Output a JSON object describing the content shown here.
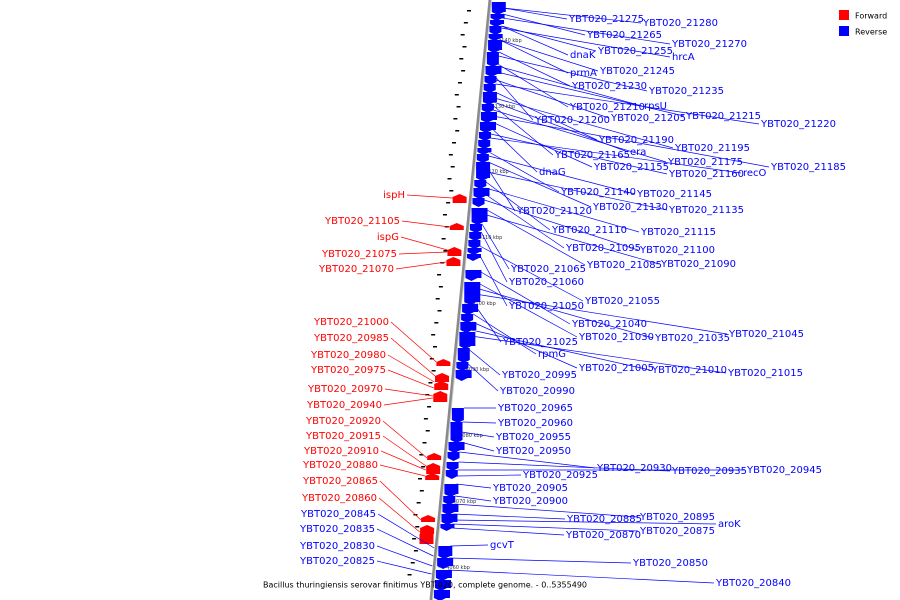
{
  "legend": {
    "items": [
      {
        "label": "Forward",
        "color": "#ff0000"
      },
      {
        "label": "Reverse",
        "color": "#0000ff"
      }
    ]
  },
  "caption": "Bacillus thuringiensis serovar finitimus YBT-020, complete genome. - 0..5355490",
  "colors": {
    "forward": "#ff0000",
    "reverse": "#0000ff",
    "backbone": "#999999"
  },
  "ticks": [
    "4140 kbp",
    "4130 kbp",
    "4120 kbp",
    "4110 kbp",
    "4100 kbp",
    "4090 kbp",
    "4080 kbp",
    "4070 kbp",
    "4060 kbp"
  ],
  "forward_labels": [
    "ispH",
    "YBT020_21105",
    "ispG",
    "YBT020_21075",
    "YBT020_21070",
    "YBT020_21000",
    "YBT020_20985",
    "YBT020_20980",
    "YBT020_20975",
    "YBT020_20970",
    "YBT020_20940",
    "YBT020_20920",
    "YBT020_20915",
    "YBT020_20910",
    "YBT020_20880",
    "YBT020_20865",
    "YBT020_20860"
  ],
  "reverse_left_labels": [
    "YBT020_20845",
    "YBT020_20835",
    "YBT020_20830",
    "YBT020_20825"
  ],
  "reverse_labels": [
    "YBT020_21275",
    "YBT020_21280",
    "YBT020_21265",
    "YBT020_21270",
    "dnaK",
    "YBT020_21255",
    "hrcA",
    "prmA",
    "YBT020_21245",
    "YBT020_21230",
    "YBT020_21235",
    "YBT020_21210",
    "rpsU",
    "YBT020_21215",
    "YBT020_21200",
    "YBT020_21205",
    "YBT020_21220",
    "YBT020_21190",
    "YBT020_21195",
    "era",
    "YBT020_21165",
    "YBT020_21175",
    "YBT020_21185",
    "YBT020_21155",
    "dnaG",
    "YBT020_21160",
    "recO",
    "YBT020_21140",
    "YBT020_21145",
    "YBT020_21130",
    "YBT020_21120",
    "YBT020_21135",
    "YBT020_21110",
    "YBT020_21115",
    "YBT020_21095",
    "YBT020_21100",
    "YBT020_21085",
    "YBT020_21090",
    "YBT020_21065",
    "YBT020_21060",
    "YBT020_21055",
    "YBT020_21050",
    "YBT020_21040",
    "YBT020_21030",
    "YBT020_21035",
    "YBT020_21045",
    "YBT020_21025",
    "rpmG",
    "YBT020_21005",
    "YBT020_21010",
    "YBT020_21015",
    "YBT020_20995",
    "YBT020_20990",
    "YBT020_20965",
    "YBT020_20960",
    "YBT020_20955",
    "YBT020_20950",
    "YBT020_20930",
    "YBT020_20935",
    "YBT020_20945",
    "YBT020_20925",
    "YBT020_20905",
    "YBT020_20900",
    "YBT020_20895",
    "YBT020_20885",
    "aroK",
    "YBT020_20875",
    "YBT020_20870",
    "gcvT",
    "YBT020_20850",
    "YBT020_20840"
  ]
}
